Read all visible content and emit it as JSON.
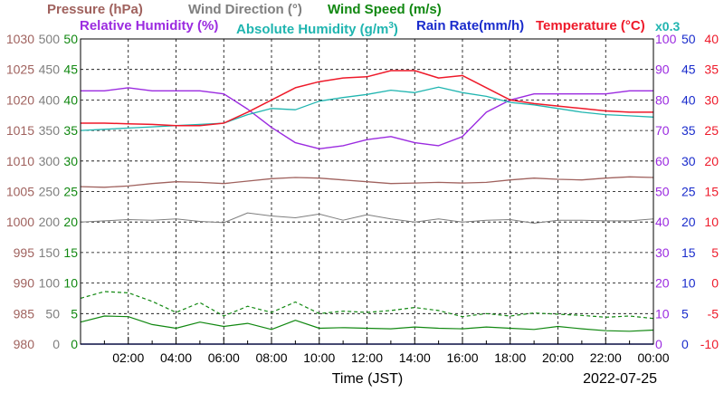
{
  "header": {
    "pressure": "Pressure (hPa)",
    "wind_direction": "Wind Direction (°)",
    "wind_speed": "Wind Speed (m/s)",
    "relative_humidity": "Relative Humidity (%)",
    "absolute_humidity_prefix": "Absolute Humidity (g/m",
    "absolute_humidity_sup": "3",
    "absolute_humidity_suffix": ")",
    "rain_rate": "Rain Rate(mm/h)",
    "temperature": "Temperature (°C)",
    "rain_scale": "x0.3"
  },
  "footer": {
    "xlabel": "Time (JST)",
    "date": "2022-07-25"
  },
  "colors": {
    "pressure": "#a0625e",
    "wind_direction": "#7f7f7f",
    "wind_speed": "#118811",
    "relative_humidity": "#9b2be0",
    "absolute_humidity": "#20b5b0",
    "rain_rate": "#1a2ccc",
    "temperature": "#ee1a2a"
  },
  "chart_data": {
    "type": "line",
    "x": [
      "00:00",
      "01:00",
      "02:00",
      "03:00",
      "04:00",
      "05:00",
      "06:00",
      "07:00",
      "08:00",
      "09:00",
      "10:00",
      "11:00",
      "12:00",
      "13:00",
      "14:00",
      "15:00",
      "16:00",
      "17:00",
      "18:00",
      "19:00",
      "20:00",
      "21:00",
      "22:00",
      "23:00",
      "24:00"
    ],
    "x_tick_labels": [
      "02:00",
      "04:00",
      "06:00",
      "08:00",
      "10:00",
      "12:00",
      "14:00",
      "16:00",
      "18:00",
      "20:00",
      "22:00",
      "00:00"
    ],
    "xlabel": "Time (JST)",
    "grid": true,
    "axes": [
      {
        "key": "pressure",
        "side": "left",
        "ticks": [
          "980",
          "985",
          "990",
          "995",
          "1000",
          "1005",
          "1010",
          "1015",
          "1020",
          "1025",
          "1030"
        ]
      },
      {
        "key": "wind_direction",
        "side": "left",
        "ticks": [
          "0",
          "50",
          "100",
          "150",
          "200",
          "250",
          "300",
          "350",
          "400",
          "450",
          "500"
        ]
      },
      {
        "key": "wind_speed",
        "side": "left",
        "ticks": [
          "0",
          "5",
          "10",
          "15",
          "20",
          "25",
          "30",
          "35",
          "40",
          "45",
          "50"
        ]
      },
      {
        "key": "relative_humidity",
        "side": "right",
        "ticks": [
          "0",
          "10",
          "20",
          "30",
          "40",
          "50",
          "60",
          "70",
          "80",
          "90",
          "100"
        ]
      },
      {
        "key": "rain_rate",
        "side": "right",
        "ticks": [
          "0",
          "5",
          "10",
          "15",
          "20",
          "25",
          "30",
          "35",
          "40",
          "45",
          "50"
        ]
      },
      {
        "key": "temperature",
        "side": "right",
        "ticks": [
          "-10",
          "-5",
          "0",
          "5",
          "10",
          "15",
          "20",
          "25",
          "30",
          "35",
          "40"
        ]
      }
    ],
    "series": [
      {
        "name": "Pressure (hPa)",
        "axis": "pressure",
        "ylim": [
          980,
          1030
        ],
        "values": [
          1005.8,
          1005.7,
          1005.9,
          1006.3,
          1006.6,
          1006.5,
          1006.3,
          1006.7,
          1007.1,
          1007.3,
          1007.2,
          1006.9,
          1006.6,
          1006.3,
          1006.4,
          1006.5,
          1006.4,
          1006.5,
          1006.9,
          1007.2,
          1007.0,
          1006.9,
          1007.2,
          1007.4,
          1007.3
        ]
      },
      {
        "name": "Wind Direction (°)",
        "axis": "wind_direction",
        "ylim": [
          0,
          500
        ],
        "values": [
          200,
          202,
          204,
          203,
          205,
          201,
          199,
          215,
          210,
          207,
          213,
          203,
          212,
          205,
          200,
          205,
          200,
          203,
          204,
          198,
          203,
          203,
          202,
          202,
          205
        ]
      },
      {
        "name": "Wind Speed (m/s)",
        "axis": "wind_speed",
        "ylim": [
          0,
          50
        ],
        "values": [
          3.6,
          4.6,
          4.5,
          3.2,
          2.6,
          3.6,
          2.9,
          3.4,
          2.4,
          3.9,
          2.6,
          2.7,
          2.6,
          2.5,
          2.8,
          2.6,
          2.5,
          2.8,
          2.6,
          2.4,
          2.9,
          2.5,
          2.2,
          2.1,
          2.3
        ]
      },
      {
        "name": "Wind Speed (m/s) gust",
        "axis": "wind_speed",
        "ylim": [
          0,
          50
        ],
        "values": [
          7.5,
          8.6,
          8.4,
          7.0,
          5.2,
          6.8,
          4.6,
          6.2,
          5.2,
          6.9,
          5.0,
          5.4,
          5.2,
          5.5,
          6.0,
          5.5,
          4.5,
          5.0,
          4.6,
          5.1,
          4.9,
          4.7,
          4.4,
          4.6,
          4.2
        ]
      },
      {
        "name": "Relative Humidity (%)",
        "axis": "relative_humidity",
        "ylim": [
          0,
          100
        ],
        "values": [
          83,
          83,
          84,
          83,
          83,
          83,
          82,
          77,
          71,
          66,
          64,
          65,
          67,
          68,
          66,
          65,
          68,
          76,
          80,
          82,
          82,
          82,
          82,
          83,
          83
        ]
      },
      {
        "name": "Absolute Humidity (g/m3)",
        "axis": "absolute_humidity",
        "ylim": [
          0,
          50
        ],
        "values": [
          35.0,
          35.2,
          35.4,
          35.6,
          35.8,
          36.0,
          36.2,
          37.6,
          38.6,
          38.4,
          39.8,
          40.4,
          40.9,
          41.6,
          41.2,
          42.1,
          41.2,
          40.6,
          39.6,
          39.2,
          38.6,
          38.0,
          37.6,
          37.4,
          37.2
        ]
      },
      {
        "name": "Rain Rate(mm/h)",
        "axis": "rain_rate",
        "ylim": [
          0,
          50
        ],
        "values": [
          0,
          0,
          0,
          0,
          0,
          0,
          0,
          0,
          0,
          0,
          0,
          0,
          0,
          0,
          0,
          0,
          0,
          0,
          0,
          0,
          0,
          0,
          0,
          0,
          0
        ]
      },
      {
        "name": "Temperature (°C)",
        "axis": "temperature",
        "ylim": [
          -10,
          40
        ],
        "values": [
          26.2,
          26.2,
          26.1,
          26.0,
          25.8,
          25.8,
          26.2,
          28.0,
          30.0,
          32.0,
          33.0,
          33.6,
          33.8,
          34.8,
          34.8,
          33.6,
          34.0,
          32.0,
          30.0,
          29.4,
          29.0,
          28.6,
          28.2,
          28.0,
          28.0
        ]
      }
    ]
  }
}
